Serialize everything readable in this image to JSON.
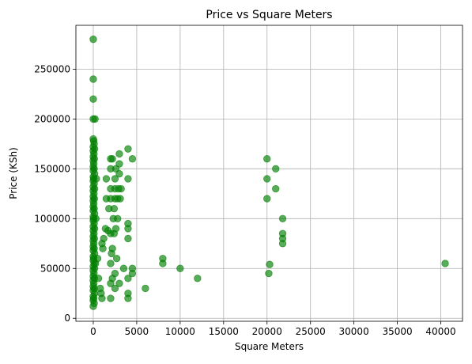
{
  "chart_data": {
    "type": "scatter",
    "title": "Price vs Square Meters",
    "xlabel": "Square Meters",
    "ylabel": "Price (KSh)",
    "xlim": [
      -2000,
      42500
    ],
    "ylim": [
      -3000,
      294000
    ],
    "xticks": [
      0,
      5000,
      10000,
      15000,
      20000,
      25000,
      30000,
      35000,
      40000
    ],
    "xtick_labels": [
      "0",
      "5000",
      "10000",
      "15000",
      "20000",
      "25000",
      "30000",
      "35000",
      "40000"
    ],
    "yticks": [
      0,
      50000,
      100000,
      150000,
      200000,
      250000
    ],
    "ytick_labels": [
      "0",
      "50000",
      "100000",
      "150000",
      "200000",
      "250000"
    ],
    "grid": true,
    "marker_color": "#008000",
    "marker_alpha": 0.65,
    "points": [
      {
        "x": 0,
        "y": 280000
      },
      {
        "x": 0,
        "y": 240000
      },
      {
        "x": 0,
        "y": 220000
      },
      {
        "x": 0,
        "y": 200000
      },
      {
        "x": 200,
        "y": 200000
      },
      {
        "x": 0,
        "y": 180000
      },
      {
        "x": 50,
        "y": 178000
      },
      {
        "x": 100,
        "y": 175000
      },
      {
        "x": 0,
        "y": 172000
      },
      {
        "x": 150,
        "y": 170000
      },
      {
        "x": 0,
        "y": 168000
      },
      {
        "x": 80,
        "y": 165000
      },
      {
        "x": 0,
        "y": 162000
      },
      {
        "x": 120,
        "y": 160000
      },
      {
        "x": 0,
        "y": 158000
      },
      {
        "x": 60,
        "y": 155000
      },
      {
        "x": 0,
        "y": 152000
      },
      {
        "x": 100,
        "y": 150000
      },
      {
        "x": 0,
        "y": 148000
      },
      {
        "x": 150,
        "y": 145000
      },
      {
        "x": 0,
        "y": 142000
      },
      {
        "x": 50,
        "y": 140000
      },
      {
        "x": 0,
        "y": 138000
      },
      {
        "x": 100,
        "y": 135000
      },
      {
        "x": 0,
        "y": 132000
      },
      {
        "x": 150,
        "y": 130000
      },
      {
        "x": 0,
        "y": 128000
      },
      {
        "x": 80,
        "y": 125000
      },
      {
        "x": 0,
        "y": 122000
      },
      {
        "x": 120,
        "y": 120000
      },
      {
        "x": 0,
        "y": 118000
      },
      {
        "x": 60,
        "y": 115000
      },
      {
        "x": 0,
        "y": 112000
      },
      {
        "x": 100,
        "y": 110000
      },
      {
        "x": 0,
        "y": 108000
      },
      {
        "x": 150,
        "y": 105000
      },
      {
        "x": 0,
        "y": 102000
      },
      {
        "x": 50,
        "y": 100000
      },
      {
        "x": 0,
        "y": 98000
      },
      {
        "x": 100,
        "y": 95000
      },
      {
        "x": 0,
        "y": 92000
      },
      {
        "x": 150,
        "y": 90000
      },
      {
        "x": 0,
        "y": 88000
      },
      {
        "x": 80,
        "y": 85000
      },
      {
        "x": 0,
        "y": 82000
      },
      {
        "x": 120,
        "y": 80000
      },
      {
        "x": 0,
        "y": 78000
      },
      {
        "x": 60,
        "y": 75000
      },
      {
        "x": 0,
        "y": 72000
      },
      {
        "x": 100,
        "y": 70000
      },
      {
        "x": 0,
        "y": 68000
      },
      {
        "x": 150,
        "y": 65000
      },
      {
        "x": 0,
        "y": 62000
      },
      {
        "x": 50,
        "y": 60000
      },
      {
        "x": 0,
        "y": 58000
      },
      {
        "x": 100,
        "y": 55000
      },
      {
        "x": 0,
        "y": 52000
      },
      {
        "x": 150,
        "y": 50000
      },
      {
        "x": 0,
        "y": 48000
      },
      {
        "x": 80,
        "y": 45000
      },
      {
        "x": 0,
        "y": 42000
      },
      {
        "x": 120,
        "y": 40000
      },
      {
        "x": 0,
        "y": 38000
      },
      {
        "x": 60,
        "y": 35000
      },
      {
        "x": 0,
        "y": 32000
      },
      {
        "x": 100,
        "y": 30000
      },
      {
        "x": 0,
        "y": 28000
      },
      {
        "x": 150,
        "y": 25000
      },
      {
        "x": 0,
        "y": 22000
      },
      {
        "x": 50,
        "y": 20000
      },
      {
        "x": 0,
        "y": 18000
      },
      {
        "x": 100,
        "y": 15000
      },
      {
        "x": 0,
        "y": 12000
      },
      {
        "x": 250,
        "y": 55000
      },
      {
        "x": 300,
        "y": 100000
      },
      {
        "x": 350,
        "y": 140000
      },
      {
        "x": 500,
        "y": 60000
      },
      {
        "x": 600,
        "y": 40000
      },
      {
        "x": 800,
        "y": 30000
      },
      {
        "x": 900,
        "y": 25000
      },
      {
        "x": 1000,
        "y": 20000
      },
      {
        "x": 1000,
        "y": 75000
      },
      {
        "x": 1100,
        "y": 70000
      },
      {
        "x": 1200,
        "y": 80000
      },
      {
        "x": 1400,
        "y": 90000
      },
      {
        "x": 1500,
        "y": 120000
      },
      {
        "x": 1500,
        "y": 140000
      },
      {
        "x": 1700,
        "y": 88000
      },
      {
        "x": 1800,
        "y": 110000
      },
      {
        "x": 2000,
        "y": 20000
      },
      {
        "x": 2000,
        "y": 35000
      },
      {
        "x": 2000,
        "y": 55000
      },
      {
        "x": 2000,
        "y": 85000
      },
      {
        "x": 2000,
        "y": 120000
      },
      {
        "x": 2000,
        "y": 130000
      },
      {
        "x": 2000,
        "y": 150000
      },
      {
        "x": 2000,
        "y": 160000
      },
      {
        "x": 2100,
        "y": 65000
      },
      {
        "x": 2200,
        "y": 40000
      },
      {
        "x": 2200,
        "y": 70000
      },
      {
        "x": 2200,
        "y": 160000
      },
      {
        "x": 2300,
        "y": 100000
      },
      {
        "x": 2400,
        "y": 85000
      },
      {
        "x": 2400,
        "y": 110000
      },
      {
        "x": 2500,
        "y": 30000
      },
      {
        "x": 2500,
        "y": 45000
      },
      {
        "x": 2500,
        "y": 120000
      },
      {
        "x": 2500,
        "y": 130000
      },
      {
        "x": 2500,
        "y": 140000
      },
      {
        "x": 2600,
        "y": 90000
      },
      {
        "x": 2600,
        "y": 150000
      },
      {
        "x": 2700,
        "y": 60000
      },
      {
        "x": 2800,
        "y": 100000
      },
      {
        "x": 2800,
        "y": 120000
      },
      {
        "x": 2900,
        "y": 130000
      },
      {
        "x": 3000,
        "y": 35000
      },
      {
        "x": 3000,
        "y": 145000
      },
      {
        "x": 3000,
        "y": 155000
      },
      {
        "x": 3000,
        "y": 165000
      },
      {
        "x": 3100,
        "y": 120000
      },
      {
        "x": 3200,
        "y": 130000
      },
      {
        "x": 3500,
        "y": 50000
      },
      {
        "x": 4000,
        "y": 20000
      },
      {
        "x": 4000,
        "y": 25000
      },
      {
        "x": 4000,
        "y": 40000
      },
      {
        "x": 4000,
        "y": 80000
      },
      {
        "x": 4000,
        "y": 90000
      },
      {
        "x": 4000,
        "y": 95000
      },
      {
        "x": 4000,
        "y": 140000
      },
      {
        "x": 4000,
        "y": 170000
      },
      {
        "x": 4500,
        "y": 45000
      },
      {
        "x": 4500,
        "y": 50000
      },
      {
        "x": 4500,
        "y": 160000
      },
      {
        "x": 6000,
        "y": 30000
      },
      {
        "x": 8000,
        "y": 55000
      },
      {
        "x": 8000,
        "y": 60000
      },
      {
        "x": 10000,
        "y": 50000
      },
      {
        "x": 12000,
        "y": 40000
      },
      {
        "x": 20000,
        "y": 160000
      },
      {
        "x": 20000,
        "y": 140000
      },
      {
        "x": 20000,
        "y": 120000
      },
      {
        "x": 20200,
        "y": 45000
      },
      {
        "x": 20300,
        "y": 54000
      },
      {
        "x": 21000,
        "y": 150000
      },
      {
        "x": 21000,
        "y": 130000
      },
      {
        "x": 21800,
        "y": 100000
      },
      {
        "x": 21800,
        "y": 85000
      },
      {
        "x": 21800,
        "y": 80000
      },
      {
        "x": 21800,
        "y": 75000
      },
      {
        "x": 40500,
        "y": 55000
      }
    ]
  }
}
